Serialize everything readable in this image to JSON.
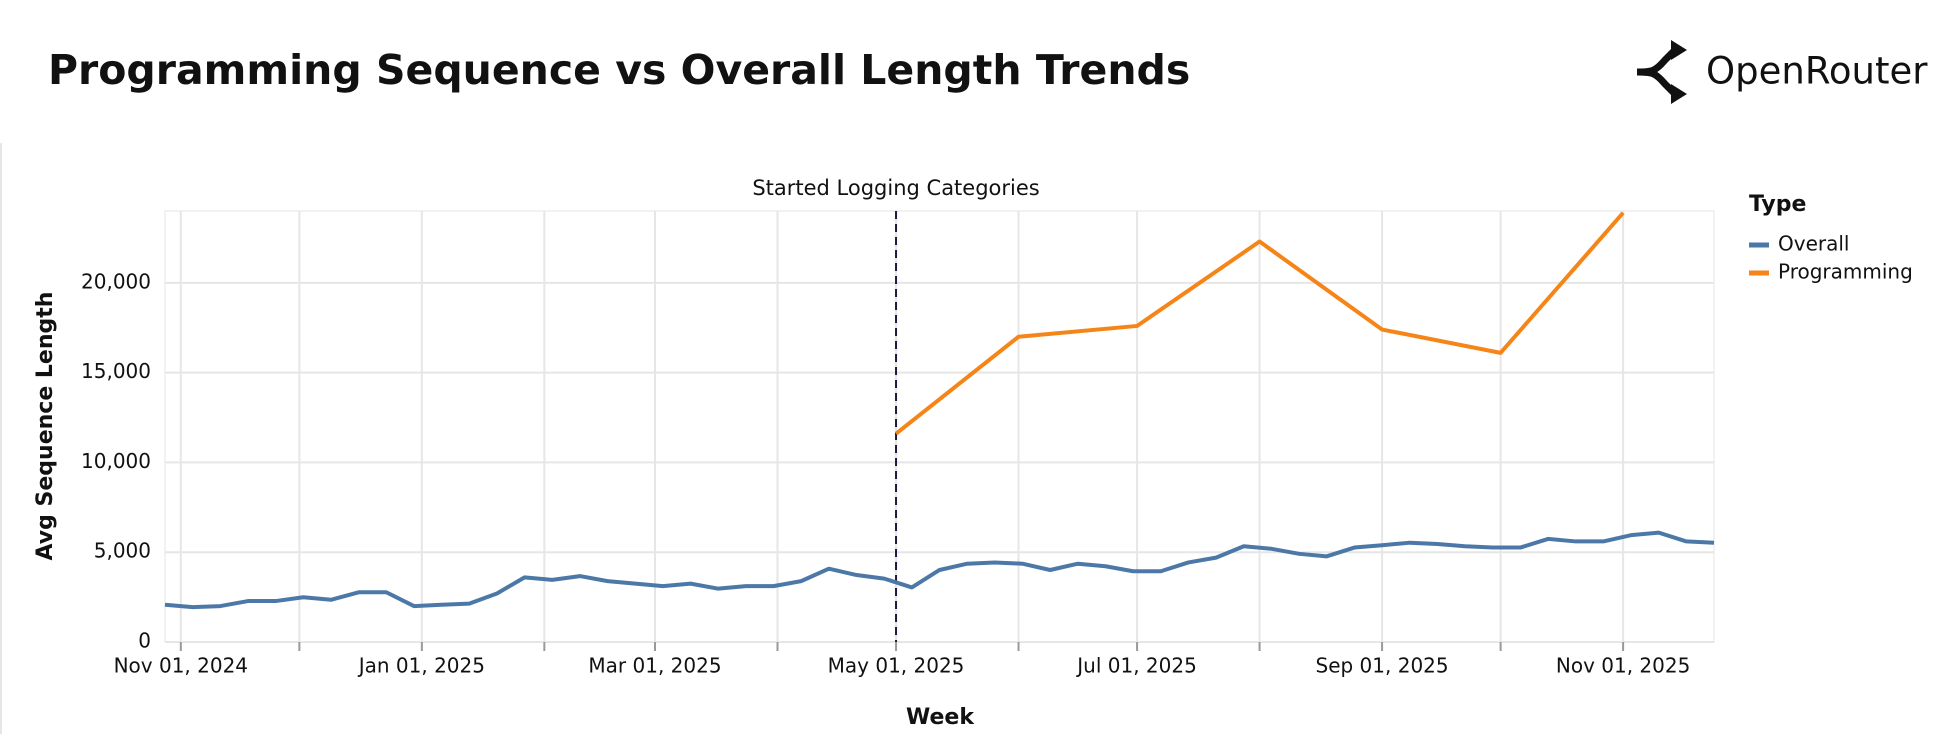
{
  "header": {
    "title": "Programming Sequence vs Overall Length Trends",
    "brand": "OpenRouter"
  },
  "chart_data": {
    "type": "line",
    "x_label": "Week",
    "y_label": "Avg Sequence Length",
    "legend_title": "Type",
    "legend": "right",
    "grid": true,
    "xlim": [
      "2024-10-28",
      "2025-11-24"
    ],
    "xticks": [
      {
        "value": "2024-11-01",
        "label": "Nov 01, 2024"
      },
      {
        "value": "2025-01-01",
        "label": "Jan 01, 2025"
      },
      {
        "value": "2025-03-01",
        "label": "Mar 01, 2025"
      },
      {
        "value": "2025-05-01",
        "label": "May 01, 2025"
      },
      {
        "value": "2025-07-01",
        "label": "Jul 01, 2025"
      },
      {
        "value": "2025-09-01",
        "label": "Sep 01, 2025"
      },
      {
        "value": "2025-11-01",
        "label": "Nov 01, 2025"
      }
    ],
    "xminorticks": [
      "2024-12-01",
      "2025-02-01",
      "2025-04-01",
      "2025-06-01",
      "2025-08-01",
      "2025-10-01"
    ],
    "ylim": [
      0,
      24000
    ],
    "yticks": [
      0,
      {
        "value": 5000,
        "label": "5,000"
      },
      {
        "value": 10000,
        "label": "10,000"
      },
      {
        "value": 15000,
        "label": "15,000"
      },
      {
        "value": 20000,
        "label": "20,000"
      }
    ],
    "annotations": [
      {
        "x": "2025-05-01",
        "text": "Started Logging Categories"
      }
    ],
    "series": [
      {
        "name": "Overall",
        "color": "#4c78a8",
        "x": [
          "2024-10-28",
          "2024-11-04",
          "2024-11-11",
          "2024-11-18",
          "2024-11-25",
          "2024-12-02",
          "2024-12-09",
          "2024-12-16",
          "2024-12-23",
          "2024-12-30",
          "2025-01-06",
          "2025-01-13",
          "2025-01-20",
          "2025-01-27",
          "2025-02-03",
          "2025-02-10",
          "2025-02-17",
          "2025-02-24",
          "2025-03-03",
          "2025-03-10",
          "2025-03-17",
          "2025-03-24",
          "2025-03-31",
          "2025-04-07",
          "2025-04-14",
          "2025-04-21",
          "2025-04-28",
          "2025-05-05",
          "2025-05-12",
          "2025-05-19",
          "2025-05-26",
          "2025-06-02",
          "2025-06-09",
          "2025-06-16",
          "2025-06-23",
          "2025-06-30",
          "2025-07-07",
          "2025-07-14",
          "2025-07-21",
          "2025-07-28",
          "2025-08-04",
          "2025-08-11",
          "2025-08-18",
          "2025-08-25",
          "2025-09-01",
          "2025-09-08",
          "2025-09-15",
          "2025-09-22",
          "2025-09-29",
          "2025-10-06",
          "2025-10-13",
          "2025-10-20",
          "2025-10-27",
          "2025-11-03",
          "2025-11-10",
          "2025-11-17",
          "2025-11-24"
        ],
        "values": [
          2075,
          1940,
          2000,
          2280,
          2280,
          2490,
          2350,
          2770,
          2770,
          2000,
          2075,
          2140,
          2700,
          3600,
          3460,
          3670,
          3390,
          3250,
          3110,
          3250,
          2970,
          3110,
          3110,
          3390,
          4080,
          3730,
          3530,
          3040,
          4010,
          4360,
          4430,
          4360,
          4010,
          4360,
          4220,
          3940,
          3940,
          4430,
          4700,
          5330,
          5190,
          4910,
          4770,
          5260,
          5390,
          5530,
          5460,
          5330,
          5260,
          5260,
          5740,
          5600,
          5600,
          5950,
          6090,
          5600,
          5530
        ]
      },
      {
        "name": "Programming",
        "color": "#f58518",
        "x": [
          "2025-05-01",
          "2025-06-01",
          "2025-07-01",
          "2025-08-01",
          "2025-09-01",
          "2025-10-01",
          "2025-11-01"
        ],
        "values": [
          11600,
          17000,
          17600,
          22300,
          17400,
          16100,
          23900
        ]
      }
    ]
  }
}
